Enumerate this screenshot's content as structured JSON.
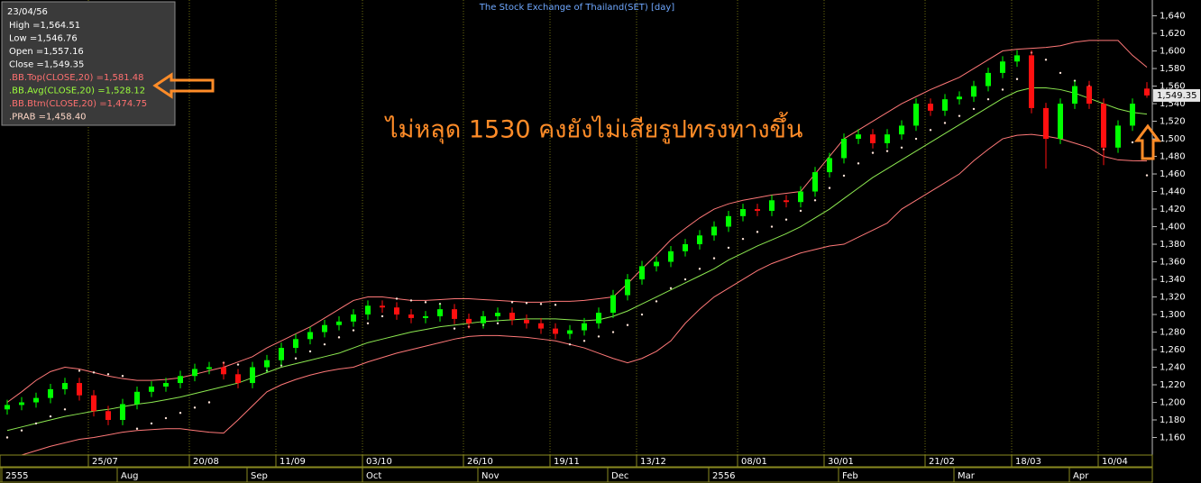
{
  "chart_data": {
    "type": "candlestick",
    "title": "The Stock Exchange of Thailand(SET) [day]",
    "annotation": "ไม่หลุด 1530 คงยังไม่เสียรูปทรงทางขึ้น",
    "last_label": "1,549.35",
    "info": {
      "date": "23/04/56",
      "lines": [
        {
          "text": "High  =1,564.51",
          "color": "#ffffff"
        },
        {
          "text": "Low  =1,546.76",
          "color": "#ffffff"
        },
        {
          "text": "Open  =1,557.16",
          "color": "#ffffff"
        },
        {
          "text": "Close  =1,549.35",
          "color": "#ffffff"
        },
        {
          "text": ".BB.Top(CLOSE,20)   =1,581.48",
          "color": "#ff7070"
        },
        {
          "text": ".BB.Avg(CLOSE,20)   =1,528.12",
          "color": "#9cff3c"
        },
        {
          "text": ".BB.Btm(CLOSE,20)   =1,474.75",
          "color": "#ff7070"
        },
        {
          "text": ".PRAB  =1,458.40",
          "color": "#ffd8c8"
        }
      ]
    },
    "categories": [
      null,
      null,
      null,
      null,
      null,
      null,
      "25/07",
      null,
      null,
      null,
      null,
      null,
      null,
      "20/08",
      null,
      null,
      null,
      null,
      null,
      "11/09",
      null,
      null,
      null,
      null,
      null,
      "03/10",
      null,
      null,
      null,
      null,
      null,
      null,
      "26/10",
      null,
      null,
      null,
      null,
      null,
      "19/11",
      null,
      null,
      null,
      null,
      null,
      "13/12",
      null,
      null,
      null,
      null,
      null,
      null,
      "08/01",
      null,
      null,
      null,
      null,
      null,
      "30/01",
      null,
      null,
      null,
      null,
      null,
      null,
      "21/02",
      null,
      null,
      null,
      null,
      null,
      "18/03",
      null,
      null,
      null,
      null,
      null,
      "10/04",
      null,
      null,
      null
    ],
    "months": [
      "2555",
      null,
      null,
      null,
      null,
      null,
      null,
      null,
      "Aug",
      null,
      null,
      null,
      null,
      null,
      null,
      null,
      null,
      "Sep",
      null,
      null,
      null,
      null,
      null,
      null,
      null,
      "Oct",
      null,
      null,
      null,
      null,
      null,
      null,
      null,
      "Nov",
      null,
      null,
      null,
      null,
      null,
      null,
      null,
      null,
      "Dec",
      null,
      null,
      null,
      null,
      null,
      null,
      "2556",
      null,
      null,
      null,
      null,
      null,
      null,
      null,
      null,
      "Feb",
      null,
      null,
      null,
      null,
      null,
      null,
      null,
      "Mar",
      null,
      null,
      null,
      null,
      null,
      null,
      null,
      "Apr",
      null,
      null,
      null,
      null,
      null
    ],
    "open": [
      1192,
      1197,
      1200,
      1205,
      1215,
      1222,
      1208,
      1190,
      1180,
      1198,
      1212,
      1218,
      1222,
      1230,
      1238,
      1240,
      1232,
      1222,
      1240,
      1248,
      1262,
      1272,
      1280,
      1288,
      1292,
      1300,
      1310,
      1308,
      1300,
      1296,
      1298,
      1306,
      1295,
      1290,
      1298,
      1302,
      1294,
      1290,
      1284,
      1278,
      1282,
      1290,
      1302,
      1322,
      1340,
      1355,
      1360,
      1372,
      1380,
      1390,
      1400,
      1412,
      1420,
      1418,
      1430,
      1428,
      1440,
      1462,
      1478,
      1500,
      1505,
      1495,
      1505,
      1515,
      1540,
      1532,
      1545,
      1548,
      1560,
      1575,
      1588,
      1595,
      1535,
      1500,
      1540,
      1560,
      1540,
      1490,
      1515,
      1557.16
    ],
    "high": [
      1203,
      1206,
      1211,
      1221,
      1228,
      1228,
      1214,
      1196,
      1204,
      1218,
      1224,
      1228,
      1236,
      1244,
      1246,
      1246,
      1238,
      1246,
      1254,
      1268,
      1278,
      1286,
      1294,
      1298,
      1306,
      1316,
      1316,
      1314,
      1306,
      1304,
      1312,
      1312,
      1301,
      1304,
      1308,
      1308,
      1300,
      1296,
      1290,
      1288,
      1296,
      1308,
      1328,
      1346,
      1361,
      1366,
      1378,
      1386,
      1396,
      1406,
      1418,
      1426,
      1426,
      1436,
      1436,
      1446,
      1468,
      1484,
      1506,
      1511,
      1511,
      1511,
      1521,
      1546,
      1546,
      1551,
      1554,
      1566,
      1581,
      1594,
      1601,
      1601,
      1541,
      1546,
      1566,
      1566,
      1546,
      1521,
      1546,
      1564.51
    ],
    "low": [
      1186,
      1191,
      1194,
      1199,
      1209,
      1202,
      1184,
      1174,
      1174,
      1192,
      1206,
      1212,
      1216,
      1224,
      1232,
      1226,
      1216,
      1216,
      1234,
      1242,
      1256,
      1266,
      1274,
      1282,
      1286,
      1294,
      1302,
      1294,
      1290,
      1290,
      1292,
      1289,
      1284,
      1284,
      1292,
      1288,
      1284,
      1278,
      1272,
      1272,
      1276,
      1284,
      1296,
      1316,
      1334,
      1349,
      1354,
      1366,
      1374,
      1384,
      1394,
      1406,
      1412,
      1412,
      1422,
      1422,
      1434,
      1456,
      1472,
      1494,
      1489,
      1489,
      1499,
      1509,
      1526,
      1526,
      1539,
      1542,
      1554,
      1569,
      1582,
      1529,
      1466,
      1494,
      1534,
      1534,
      1470,
      1484,
      1509,
      1546.76
    ],
    "close": [
      1197,
      1200,
      1205,
      1215,
      1222,
      1208,
      1190,
      1180,
      1198,
      1212,
      1218,
      1222,
      1230,
      1238,
      1240,
      1232,
      1222,
      1240,
      1248,
      1262,
      1272,
      1280,
      1288,
      1292,
      1300,
      1310,
      1308,
      1300,
      1296,
      1298,
      1306,
      1295,
      1290,
      1298,
      1302,
      1294,
      1290,
      1284,
      1278,
      1282,
      1290,
      1302,
      1322,
      1340,
      1355,
      1360,
      1372,
      1380,
      1390,
      1400,
      1412,
      1420,
      1418,
      1430,
      1428,
      1440,
      1462,
      1478,
      1500,
      1505,
      1495,
      1505,
      1515,
      1540,
      1532,
      1545,
      1548,
      1560,
      1575,
      1588,
      1595,
      1535,
      1500,
      1540,
      1560,
      1540,
      1490,
      1515,
      1540,
      1549.35
    ],
    "up_color": "#00ff00",
    "down_color": "#ff1010",
    "series": [
      {
        "name": "BB.Top",
        "color": "#ff7878",
        "values": [
          1200,
          1212,
          1225,
          1235,
          1240,
          1238,
          1234,
          1230,
          1227,
          1225,
          1225,
          1226,
          1228,
          1232,
          1236,
          1240,
          1246,
          1252,
          1262,
          1270,
          1278,
          1286,
          1296,
          1306,
          1316,
          1320,
          1320,
          1318,
          1316,
          1316,
          1317,
          1318,
          1318,
          1317,
          1316,
          1315,
          1314,
          1314,
          1315,
          1315,
          1316,
          1318,
          1320,
          1335,
          1352,
          1368,
          1385,
          1398,
          1410,
          1420,
          1426,
          1430,
          1433,
          1436,
          1438,
          1440,
          1460,
          1480,
          1500,
          1510,
          1520,
          1530,
          1540,
          1548,
          1556,
          1563,
          1570,
          1580,
          1590,
          1600,
          1602,
          1603,
          1604,
          1606,
          1610,
          1612,
          1612,
          1612,
          1595,
          1581.48
        ]
      },
      {
        "name": "BB.Avg",
        "color": "#8ce850",
        "values": [
          1168,
          1172,
          1176,
          1180,
          1184,
          1187,
          1190,
          1192,
          1195,
          1198,
          1200,
          1203,
          1206,
          1210,
          1214,
          1218,
          1222,
          1228,
          1234,
          1240,
          1244,
          1248,
          1252,
          1256,
          1262,
          1268,
          1272,
          1276,
          1280,
          1283,
          1286,
          1288,
          1290,
          1292,
          1293,
          1294,
          1295,
          1295,
          1295,
          1294,
          1293,
          1294,
          1298,
          1304,
          1312,
          1320,
          1328,
          1336,
          1344,
          1352,
          1362,
          1370,
          1378,
          1385,
          1392,
          1400,
          1410,
          1420,
          1432,
          1444,
          1456,
          1466,
          1476,
          1486,
          1496,
          1506,
          1516,
          1526,
          1536,
          1546,
          1554,
          1558,
          1558,
          1556,
          1552,
          1546,
          1540,
          1534,
          1530,
          1528.12
        ]
      },
      {
        "name": "BB.Btm",
        "color": "#ff7878",
        "values": [
          1136,
          1140,
          1145,
          1150,
          1154,
          1158,
          1160,
          1163,
          1166,
          1168,
          1169,
          1170,
          1170,
          1168,
          1166,
          1165,
          1180,
          1196,
          1212,
          1220,
          1226,
          1231,
          1235,
          1238,
          1240,
          1246,
          1251,
          1256,
          1260,
          1264,
          1268,
          1272,
          1275,
          1276,
          1276,
          1275,
          1274,
          1272,
          1270,
          1266,
          1262,
          1256,
          1250,
          1245,
          1250,
          1258,
          1270,
          1290,
          1306,
          1320,
          1330,
          1340,
          1350,
          1358,
          1364,
          1370,
          1374,
          1378,
          1380,
          1388,
          1396,
          1404,
          1420,
          1430,
          1440,
          1450,
          1460,
          1475,
          1488,
          1500,
          1504,
          1505,
          1503,
          1500,
          1495,
          1490,
          1480,
          1476,
          1475,
          1474.75
        ]
      }
    ],
    "sar": {
      "name": "PRAB",
      "color": "#ffe4d8",
      "values": [
        1160,
        1168,
        1176,
        1184,
        1192,
        1236,
        1234,
        1232,
        1230,
        1170,
        1176,
        1182,
        1188,
        1194,
        1200,
        1245,
        1243,
        1230,
        1236,
        1242,
        1250,
        1258,
        1266,
        1274,
        1282,
        1290,
        1298,
        1318,
        1316,
        1314,
        1312,
        1284,
        1286,
        1288,
        1290,
        1314,
        1313,
        1312,
        1311,
        1266,
        1270,
        1275,
        1280,
        1288,
        1300,
        1315,
        1330,
        1340,
        1352,
        1364,
        1376,
        1386,
        1394,
        1400,
        1408,
        1418,
        1430,
        1444,
        1458,
        1472,
        1484,
        1486,
        1490,
        1500,
        1510,
        1518,
        1526,
        1534,
        1545,
        1556,
        1568,
        1598,
        1590,
        1575,
        1566,
        1560,
        1488,
        1492,
        1496,
        1458.4
      ]
    },
    "ylim": [
      1140,
      1658
    ],
    "yticks": [
      {
        "value": 1160,
        "label": "1,160"
      },
      {
        "value": 1180,
        "label": "1,180"
      },
      {
        "value": 1200,
        "label": "1,200"
      },
      {
        "value": 1220,
        "label": "1,220"
      },
      {
        "value": 1240,
        "label": "1,240"
      },
      {
        "value": 1260,
        "label": "1,260"
      },
      {
        "value": 1280,
        "label": "1,280"
      },
      {
        "value": 1300,
        "label": "1,300"
      },
      {
        "value": 1320,
        "label": "1,320"
      },
      {
        "value": 1340,
        "label": "1,340"
      },
      {
        "value": 1360,
        "label": "1,360"
      },
      {
        "value": 1380,
        "label": "1,380"
      },
      {
        "value": 1400,
        "label": "1,400"
      },
      {
        "value": 1420,
        "label": "1,420"
      },
      {
        "value": 1440,
        "label": "1,440"
      },
      {
        "value": 1460,
        "label": "1,460"
      },
      {
        "value": 1480,
        "label": "1,480"
      },
      {
        "value": 1500,
        "label": "1,500"
      },
      {
        "value": 1520,
        "label": "1,520"
      },
      {
        "value": 1540,
        "label": "1,540"
      },
      {
        "value": 1560,
        "label": "1,560"
      },
      {
        "value": 1580,
        "label": "1,580"
      },
      {
        "value": 1600,
        "label": "1,600"
      },
      {
        "value": 1620,
        "label": "1,620"
      },
      {
        "value": 1640,
        "label": "1,640"
      }
    ],
    "grid": true
  }
}
